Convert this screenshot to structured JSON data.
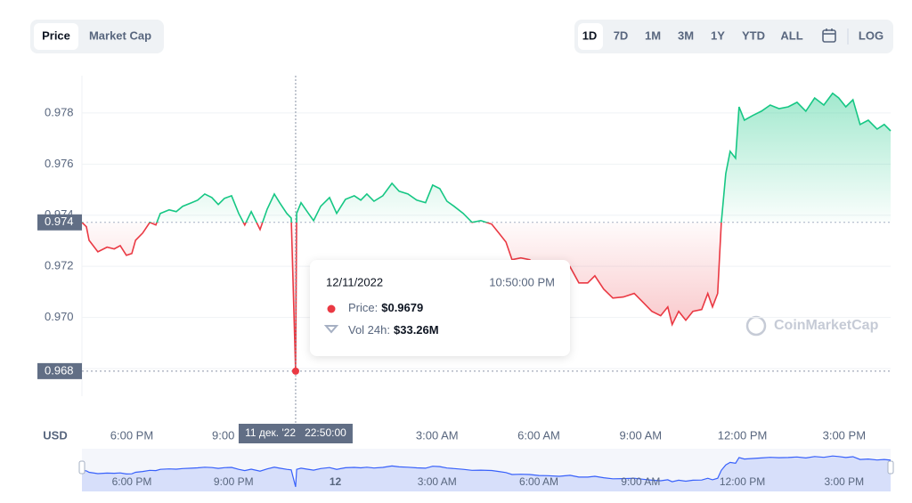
{
  "chart_data": {
    "type": "line",
    "ui": {
      "tabs": [
        "Price",
        "Market Cap"
      ],
      "ranges": [
        "1D",
        "7D",
        "1M",
        "3M",
        "1Y",
        "YTD",
        "ALL"
      ],
      "log": "LOG",
      "currency": "USD",
      "watermark": "CoinMarketCap"
    },
    "x": [
      16.53,
      16.66,
      16.74,
      17.0,
      17.27,
      17.48,
      17.66,
      17.84,
      18.0,
      18.11,
      18.32,
      18.53,
      18.71,
      18.84,
      19.1,
      19.31,
      19.5,
      19.76,
      19.94,
      20.15,
      20.36,
      20.55,
      20.73,
      20.94,
      21.15,
      21.33,
      21.52,
      21.78,
      21.99,
      22.2,
      22.36,
      22.57,
      22.7,
      22.83,
      22.86,
      22.99,
      23.17,
      23.36,
      23.57,
      23.83,
      24.04,
      24.3,
      24.56,
      24.75,
      24.93,
      25.14,
      25.4,
      25.67,
      25.88,
      26.14,
      26.4,
      26.66,
      26.87,
      27.08,
      27.29,
      27.5,
      27.77,
      28.03,
      28.29,
      28.61,
      28.82,
      29.03,
      29.21,
      29.47,
      29.73,
      30.0,
      30.26,
      30.6,
      30.92,
      31.18,
      31.44,
      31.65,
      31.91,
      32.18,
      32.49,
      32.81,
      33.07,
      33.33,
      33.59,
      33.8,
      33.93,
      34.12,
      34.33,
      34.54,
      34.8,
      34.98,
      35.12,
      35.27,
      35.38,
      35.51,
      35.64,
      35.8,
      35.9,
      36.06,
      36.3,
      36.56,
      36.82,
      37.08,
      37.35,
      37.61,
      37.87,
      38.13,
      38.4,
      38.66,
      38.84,
      39.05,
      39.26,
      39.47,
      39.71,
      39.97,
      40.18,
      40.37
    ],
    "values": [
      0.97372,
      0.97355,
      0.97302,
      0.97257,
      0.97275,
      0.97268,
      0.97281,
      0.97243,
      0.9725,
      0.97302,
      0.9733,
      0.97372,
      0.97362,
      0.97407,
      0.97421,
      0.97414,
      0.97435,
      0.97449,
      0.97459,
      0.97483,
      0.97469,
      0.97442,
      0.97466,
      0.97476,
      0.97407,
      0.97362,
      0.97414,
      0.97344,
      0.97424,
      0.97483,
      0.97449,
      0.97407,
      0.97389,
      0.9679,
      0.97407,
      0.97449,
      0.97414,
      0.97379,
      0.97435,
      0.97469,
      0.97407,
      0.97462,
      0.97476,
      0.97459,
      0.97483,
      0.97455,
      0.97476,
      0.97525,
      0.97494,
      0.97483,
      0.97459,
      0.97449,
      0.97518,
      0.97504,
      0.97455,
      0.97435,
      0.97407,
      0.97372,
      0.97379,
      0.97365,
      0.9733,
      0.97295,
      0.97226,
      0.97233,
      0.97226,
      0.97191,
      0.97184,
      0.97163,
      0.97198,
      0.97135,
      0.97135,
      0.97163,
      0.97111,
      0.97076,
      0.9708,
      0.97094,
      0.97059,
      0.97024,
      0.97007,
      0.97041,
      0.96972,
      0.97024,
      0.96989,
      0.97024,
      0.97031,
      0.97094,
      0.97041,
      0.97094,
      0.97372,
      0.97563,
      0.9765,
      0.97623,
      0.97824,
      0.97772,
      0.9779,
      0.97807,
      0.97831,
      0.97817,
      0.97824,
      0.97842,
      0.97807,
      0.97859,
      0.97831,
      0.97877,
      0.97859,
      0.97824,
      0.97852,
      0.97755,
      0.97772,
      0.97737,
      0.97755,
      0.9773
    ],
    "up_color": "#16c784",
    "down_color": "#ea3943",
    "navigator_color": "#3861fb",
    "xlim": [
      16.53,
      40.37
    ],
    "ylim": [
      0.96692,
      0.97946
    ],
    "yticks": [
      0.968,
      {
        "value": 0.97,
        "label": "0.970"
      },
      0.972,
      0.974,
      0.976,
      0.978
    ],
    "xticks": [
      {
        "value": 18,
        "label": "6:00 PM"
      },
      {
        "value": 21,
        "label": "9:00 PM"
      },
      {
        "value": 27,
        "label": "3:00 AM"
      },
      {
        "value": 30,
        "label": "6:00 AM"
      },
      {
        "value": 33,
        "label": "9:00 AM"
      },
      {
        "value": 36,
        "label": "12:00 PM"
      },
      {
        "value": 39,
        "label": "3:00 PM"
      }
    ],
    "navigator_xticks": [
      {
        "value": 18,
        "label": "6:00 PM"
      },
      {
        "value": 21,
        "label": "9:00 PM"
      },
      {
        "value": 24,
        "label": "12"
      },
      {
        "value": 27,
        "label": "3:00 AM"
      },
      {
        "value": 30,
        "label": "6:00 AM"
      },
      {
        "value": 33,
        "label": "9:00 AM"
      },
      {
        "value": 36,
        "label": "12:00 PM"
      },
      {
        "value": 39,
        "label": "3:00 PM"
      }
    ],
    "reference_line": {
      "value": 0.97372,
      "label": "0.974"
    },
    "crosshair": {
      "x": 22.83,
      "x_label": "11 дек. '22   22:50:00",
      "value": 0.9679,
      "label": "0.968"
    },
    "tooltip": {
      "date": "12/11/2022",
      "time": "10:50:00 PM",
      "price_label": "Price:",
      "price": "$0.9679",
      "volume_label": "Vol 24h:",
      "volume": "$33.26M"
    },
    "grid": true
  }
}
